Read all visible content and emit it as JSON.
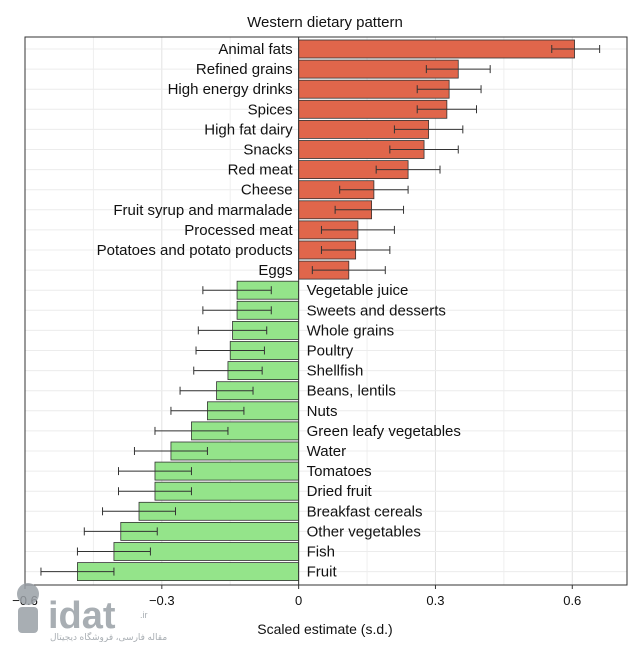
{
  "chart_data": {
    "type": "bar",
    "orientation": "horizontal",
    "title": "Western dietary pattern",
    "xlabel": "Scaled estimate (s.d.)",
    "ylabel": "",
    "xlim": [
      -0.6,
      0.72
    ],
    "xticks": [
      -0.6,
      -0.3,
      0,
      0.3,
      0.6
    ],
    "xtick_labels": [
      "−0.6",
      "−0.3",
      "0",
      "0.3",
      "0.6"
    ],
    "grid": true,
    "positive_color": "#e0664b",
    "negative_color": "#94e48a",
    "bars": [
      {
        "category": "Animal fats",
        "value": 0.605,
        "ci": [
          0.555,
          0.66
        ]
      },
      {
        "category": "Refined grains",
        "value": 0.35,
        "ci": [
          0.28,
          0.42
        ]
      },
      {
        "category": "High energy drinks",
        "value": 0.33,
        "ci": [
          0.26,
          0.4
        ]
      },
      {
        "category": "Spices",
        "value": 0.325,
        "ci": [
          0.26,
          0.39
        ]
      },
      {
        "category": "High fat dairy",
        "value": 0.285,
        "ci": [
          0.21,
          0.36
        ]
      },
      {
        "category": "Snacks",
        "value": 0.275,
        "ci": [
          0.2,
          0.35
        ]
      },
      {
        "category": "Red meat",
        "value": 0.24,
        "ci": [
          0.17,
          0.31
        ]
      },
      {
        "category": "Cheese",
        "value": 0.165,
        "ci": [
          0.09,
          0.24
        ]
      },
      {
        "category": "Fruit syrup and marmalade",
        "value": 0.16,
        "ci": [
          0.08,
          0.23
        ]
      },
      {
        "category": "Processed meat",
        "value": 0.13,
        "ci": [
          0.05,
          0.21
        ]
      },
      {
        "category": "Potatoes and potato products",
        "value": 0.125,
        "ci": [
          0.05,
          0.2
        ]
      },
      {
        "category": "Eggs",
        "value": 0.11,
        "ci": [
          0.03,
          0.19
        ]
      },
      {
        "category": "Vegetable juice",
        "value": -0.135,
        "ci": [
          -0.21,
          -0.06
        ]
      },
      {
        "category": "Sweets and desserts",
        "value": -0.135,
        "ci": [
          -0.21,
          -0.06
        ]
      },
      {
        "category": "Whole grains",
        "value": -0.145,
        "ci": [
          -0.22,
          -0.07
        ]
      },
      {
        "category": "Poultry",
        "value": -0.15,
        "ci": [
          -0.225,
          -0.075
        ]
      },
      {
        "category": "Shellfish",
        "value": -0.155,
        "ci": [
          -0.23,
          -0.08
        ]
      },
      {
        "category": "Beans, lentils",
        "value": -0.18,
        "ci": [
          -0.26,
          -0.1
        ]
      },
      {
        "category": "Nuts",
        "value": -0.2,
        "ci": [
          -0.28,
          -0.12
        ]
      },
      {
        "category": "Green leafy vegetables",
        "value": -0.235,
        "ci": [
          -0.315,
          -0.155
        ]
      },
      {
        "category": "Water",
        "value": -0.28,
        "ci": [
          -0.36,
          -0.2
        ]
      },
      {
        "category": "Tomatoes",
        "value": -0.315,
        "ci": [
          -0.395,
          -0.235
        ]
      },
      {
        "category": "Dried fruit",
        "value": -0.315,
        "ci": [
          -0.395,
          -0.235
        ]
      },
      {
        "category": "Breakfast cereals",
        "value": -0.35,
        "ci": [
          -0.43,
          -0.27
        ]
      },
      {
        "category": "Other vegetables",
        "value": -0.39,
        "ci": [
          -0.47,
          -0.31
        ]
      },
      {
        "category": "Fish",
        "value": -0.405,
        "ci": [
          -0.485,
          -0.325
        ]
      },
      {
        "category": "Fruit",
        "value": -0.485,
        "ci": [
          -0.565,
          -0.405
        ]
      }
    ]
  },
  "watermark": {
    "text": "idat",
    "suffix": ".ir",
    "tagline": "مقاله فارسی، فروشگاه دیجیتال"
  }
}
